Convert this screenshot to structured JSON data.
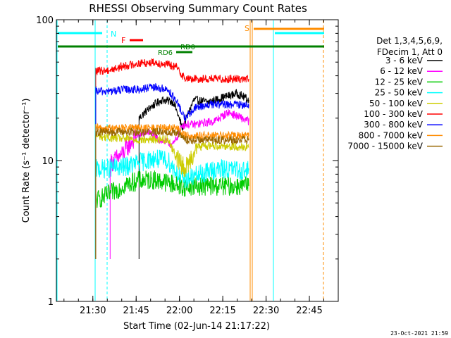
{
  "chart_data": {
    "type": "line",
    "title": "RHESSI Observing Summary Count Rates",
    "xlabel": "Start Time (02-Jun-14 21:17:22)",
    "ylabel": "Count Rate (s⁻¹ detector⁻¹)",
    "yscale": "log",
    "ylim": [
      1,
      100
    ],
    "xlim": [
      "21:17:22",
      "22:55:00"
    ],
    "x_ticks": [
      "21:30",
      "21:45",
      "22:00",
      "22:15",
      "22:30",
      "22:45"
    ],
    "y_ticks": [
      "1",
      "10",
      "100"
    ],
    "legend_title": [
      "Det 1,3,4,5,6,9,",
      "FDecim 1, Att 0"
    ],
    "legend_placement": "right",
    "grid": false,
    "series": [
      {
        "name": "3 - 6 keV",
        "color": "#000000",
        "x": [
          "21:46",
          "21:50",
          "21:54",
          "21:58",
          "22:01",
          "22:05",
          "22:10",
          "22:15",
          "22:20",
          "22:24"
        ],
        "y": [
          20,
          24,
          27,
          26,
          17,
          27,
          26,
          28,
          30,
          27
        ]
      },
      {
        "name": "6 - 12 keV",
        "color": "#ff00ff",
        "x": [
          "21:36",
          "21:40",
          "21:45",
          "21:49",
          "21:53",
          "21:58",
          "22:01",
          "22:05",
          "22:12",
          "22:17",
          "22:24"
        ],
        "y": [
          9.5,
          11,
          15,
          16,
          14,
          13,
          18,
          18,
          19,
          22,
          19
        ]
      },
      {
        "name": "12 - 25 keV",
        "color": "#00cc00",
        "x": [
          "21:31",
          "21:36",
          "21:41",
          "21:46",
          "21:51",
          "21:56",
          "22:01",
          "22:06",
          "22:11",
          "22:16",
          "22:21",
          "22:24"
        ],
        "y": [
          5.2,
          5.8,
          6.7,
          7.2,
          7.3,
          7.0,
          6.5,
          6.6,
          6.6,
          6.6,
          6.6,
          6.6
        ]
      },
      {
        "name": "25 - 50 keV",
        "color": "#00ffff",
        "x": [
          "21:31",
          "21:36",
          "21:41",
          "21:46",
          "21:51",
          "21:56",
          "22:01",
          "22:06",
          "22:11",
          "22:16",
          "22:21",
          "22:24"
        ],
        "y": [
          8.7,
          8.8,
          9.0,
          9.7,
          10.3,
          10.0,
          7.3,
          7.8,
          8.5,
          8.7,
          8.5,
          8.5
        ]
      },
      {
        "name": "50 - 100 keV",
        "color": "#cccc00",
        "x": [
          "21:31",
          "21:36",
          "21:41",
          "21:46",
          "21:51",
          "21:56",
          "21:59",
          "22:02",
          "22:06",
          "22:11",
          "22:16",
          "22:21",
          "22:24"
        ],
        "y": [
          15,
          14.5,
          14.3,
          14.0,
          14.1,
          14.2,
          10.5,
          8.7,
          12.5,
          12.8,
          12.7,
          12.5,
          12.5
        ]
      },
      {
        "name": "100 - 300 keV",
        "color": "#ff0000",
        "x": [
          "21:31",
          "21:36",
          "21:41",
          "21:46",
          "21:51",
          "21:56",
          "21:59",
          "22:02",
          "22:06",
          "22:11",
          "22:16",
          "22:21",
          "22:24"
        ],
        "y": [
          43,
          44,
          47,
          49,
          50,
          48,
          46,
          38,
          38,
          38,
          38,
          38,
          38
        ]
      },
      {
        "name": "300 - 800 keV",
        "color": "#0000ff",
        "x": [
          "21:31",
          "21:36",
          "21:41",
          "21:46",
          "21:51",
          "21:56",
          "21:59",
          "22:02",
          "22:06",
          "22:11",
          "22:16",
          "22:21",
          "22:24"
        ],
        "y": [
          31,
          31,
          32,
          32,
          33,
          32,
          26,
          20,
          24,
          25,
          25,
          25,
          25
        ]
      },
      {
        "name": "800 - 7000 keV",
        "color": "#ff8c00",
        "x": [
          "21:31",
          "21:36",
          "21:41",
          "21:46",
          "21:51",
          "21:56",
          "21:59",
          "22:02",
          "22:06",
          "22:11",
          "22:16",
          "22:21",
          "22:24"
        ],
        "y": [
          17,
          17,
          17,
          17,
          17,
          17,
          17,
          15,
          15,
          15,
          15,
          15,
          15
        ]
      },
      {
        "name": "7000 - 15000 keV",
        "color": "#996600",
        "x": [
          "21:31",
          "21:59",
          "22:02",
          "22:24"
        ],
        "y": [
          16,
          16,
          14,
          14
        ]
      }
    ],
    "flags": [
      {
        "label": "N",
        "color": "#00ffff"
      },
      {
        "label": "F",
        "color": "#ff0000"
      },
      {
        "label": "RD0",
        "color": "#008000"
      },
      {
        "label": "RD6",
        "color": "#008000"
      },
      {
        "label": "S",
        "color": "#ff8c00"
      }
    ],
    "timestamp": "23-Oct-2021 21:59"
  }
}
